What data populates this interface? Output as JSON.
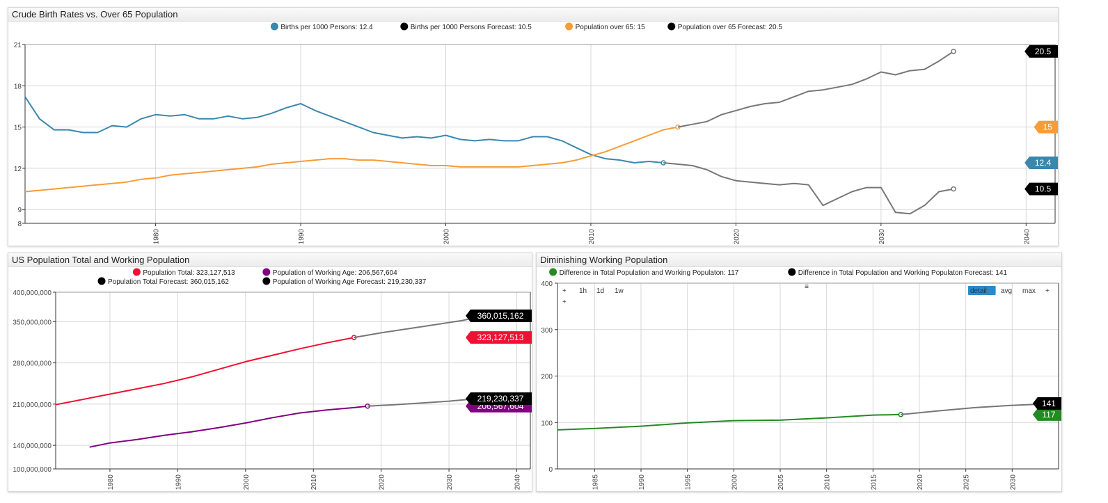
{
  "widgets": [
    {
      "title": "Crude Birth Rates vs. Over 65 Population"
    },
    {
      "title": "US Population Total and Working Population"
    },
    {
      "title": "Diminishing Working Population"
    }
  ],
  "controls": {
    "periods": [
      "+",
      "1h",
      "1d",
      "1w",
      "+"
    ],
    "menu": "≡",
    "modes": [
      "detail",
      "avg",
      "max",
      "+"
    ],
    "active_mode": "detail"
  },
  "chart_data": [
    {
      "type": "line",
      "title": "Crude Birth Rates vs. Over 65 Population",
      "xlim": [
        1971,
        2042
      ],
      "ylim": [
        8,
        21
      ],
      "x_ticks": [
        1980,
        1990,
        2000,
        2010,
        2020,
        2030,
        2040
      ],
      "y_ticks": [
        8,
        9,
        12,
        15,
        18,
        21
      ],
      "series": [
        {
          "name": "Births per 1000 Persons",
          "legend": "Births per 1000 Persons: 12.4",
          "color": "#3a87ad",
          "badge": "12.4",
          "x": [
            1971,
            1972,
            1973,
            1974,
            1975,
            1976,
            1977,
            1978,
            1979,
            1980,
            1981,
            1982,
            1983,
            1984,
            1985,
            1986,
            1987,
            1988,
            1989,
            1990,
            1991,
            1992,
            1993,
            1994,
            1995,
            1996,
            1997,
            1998,
            1999,
            2000,
            2001,
            2002,
            2003,
            2004,
            2005,
            2006,
            2007,
            2008,
            2009,
            2010,
            2011,
            2012,
            2013,
            2014,
            2015
          ],
          "y": [
            17.2,
            15.6,
            14.8,
            14.8,
            14.6,
            14.6,
            15.1,
            15.0,
            15.6,
            15.9,
            15.8,
            15.9,
            15.6,
            15.6,
            15.8,
            15.6,
            15.7,
            16.0,
            16.4,
            16.7,
            16.2,
            15.8,
            15.4,
            15.0,
            14.6,
            14.4,
            14.2,
            14.3,
            14.2,
            14.4,
            14.1,
            14.0,
            14.1,
            14.0,
            14.0,
            14.3,
            14.3,
            14.0,
            13.5,
            13.0,
            12.7,
            12.6,
            12.4,
            12.5,
            12.4
          ]
        },
        {
          "name": "Births per 1000 Persons Forecast",
          "legend": "Births per 1000 Persons Forecast: 10.5",
          "color": "#777777",
          "legend_color": "#000000",
          "badge": "10.5",
          "x": [
            2015,
            2016,
            2017,
            2018,
            2019,
            2020,
            2021,
            2022,
            2023,
            2024,
            2025,
            2026,
            2027,
            2028,
            2029,
            2030,
            2031,
            2032,
            2033,
            2034,
            2035
          ],
          "y": [
            12.4,
            12.3,
            12.2,
            11.9,
            11.4,
            11.1,
            11.0,
            10.9,
            10.8,
            10.9,
            10.8,
            9.3,
            9.8,
            10.3,
            10.6,
            10.6,
            8.8,
            8.7,
            9.3,
            10.3,
            10.5
          ]
        },
        {
          "name": "Population over 65",
          "legend": "Population over 65: 15",
          "color": "#f89c35",
          "badge": "15",
          "x": [
            1971,
            1972,
            1973,
            1974,
            1975,
            1976,
            1977,
            1978,
            1979,
            1980,
            1981,
            1982,
            1983,
            1984,
            1985,
            1986,
            1987,
            1988,
            1989,
            1990,
            1991,
            1992,
            1993,
            1994,
            1995,
            1996,
            1997,
            1998,
            1999,
            2000,
            2001,
            2002,
            2003,
            2004,
            2005,
            2006,
            2007,
            2008,
            2009,
            2010,
            2011,
            2012,
            2013,
            2014,
            2015,
            2016
          ],
          "y": [
            10.3,
            10.4,
            10.5,
            10.6,
            10.7,
            10.8,
            10.9,
            11.0,
            11.2,
            11.3,
            11.5,
            11.6,
            11.7,
            11.8,
            11.9,
            12.0,
            12.1,
            12.3,
            12.4,
            12.5,
            12.6,
            12.7,
            12.7,
            12.6,
            12.6,
            12.5,
            12.4,
            12.3,
            12.2,
            12.2,
            12.1,
            12.1,
            12.1,
            12.1,
            12.1,
            12.2,
            12.3,
            12.4,
            12.6,
            12.9,
            13.2,
            13.6,
            14.0,
            14.4,
            14.8,
            15.0
          ]
        },
        {
          "name": "Population over 65 Forecast",
          "legend": "Population over 65 Forecast: 20.5",
          "color": "#777777",
          "legend_color": "#000000",
          "badge": "20.5",
          "x": [
            2016,
            2017,
            2018,
            2019,
            2020,
            2021,
            2022,
            2023,
            2024,
            2025,
            2026,
            2027,
            2028,
            2029,
            2030,
            2031,
            2032,
            2033,
            2034,
            2035
          ],
          "y": [
            15.0,
            15.2,
            15.4,
            15.9,
            16.2,
            16.5,
            16.7,
            16.8,
            17.2,
            17.6,
            17.7,
            17.9,
            18.1,
            18.5,
            19.0,
            18.8,
            19.1,
            19.2,
            19.8,
            20.5
          ]
        }
      ]
    },
    {
      "type": "line",
      "title": "US Population Total and Working Population",
      "xlim": [
        1972,
        2042
      ],
      "ylim": [
        100000000,
        400000000
      ],
      "x_ticks": [
        1980,
        1990,
        2000,
        2010,
        2020,
        2030,
        2040
      ],
      "y_ticks": [
        100000000,
        140000000,
        210000000,
        280000000,
        350000000,
        400000000
      ],
      "y_tick_labels": [
        "100,000,000",
        "140,000,000",
        "210,000,000",
        "280,000,000",
        "350,000,000",
        "400,000,000"
      ],
      "series": [
        {
          "name": "Population Total",
          "legend": "Population Total: 323,127,513",
          "color": "#ee1133",
          "badge": "323,127,513",
          "x": [
            1972,
            1976,
            1980,
            1984,
            1988,
            1992,
            1996,
            2000,
            2004,
            2008,
            2012,
            2016
          ],
          "y": [
            209000000,
            218000000,
            227000000,
            236000000,
            245000000,
            256000000,
            269000000,
            282000000,
            293000000,
            304000000,
            314000000,
            323127513
          ]
        },
        {
          "name": "Population Total Forecast",
          "legend": "Population Total Forecast: 360,015,162",
          "color": "#777777",
          "legend_color": "#000000",
          "badge": "360,015,162",
          "x": [
            2016,
            2020,
            2024,
            2028,
            2032,
            2035
          ],
          "y": [
            323127513,
            331000000,
            338000000,
            345000000,
            352000000,
            360015162
          ]
        },
        {
          "name": "Population of Working Age",
          "legend": "Population of Working Age: 206,567,604",
          "color": "#800080",
          "badge": "206,567,604",
          "x": [
            1977,
            1980,
            1984,
            1988,
            1992,
            1996,
            2000,
            2004,
            2008,
            2012,
            2016,
            2018
          ],
          "y": [
            137000000,
            144000000,
            150000000,
            157000000,
            163000000,
            170000000,
            178000000,
            187000000,
            195000000,
            200000000,
            204000000,
            206567604
          ]
        },
        {
          "name": "Population of Working Age Forecast",
          "legend": "Population of Working Age Forecast: 219,230,337",
          "color": "#777777",
          "legend_color": "#000000",
          "badge": "219,230,337",
          "x": [
            2018,
            2022,
            2026,
            2030,
            2034
          ],
          "y": [
            206567604,
            209000000,
            212000000,
            215000000,
            219230337
          ]
        }
      ]
    },
    {
      "type": "line",
      "title": "Diminishing Working Population",
      "xlim": [
        1981,
        2035
      ],
      "ylim": [
        0,
        400
      ],
      "x_ticks": [
        1985,
        1990,
        1995,
        2000,
        2005,
        2010,
        2015,
        2020,
        2025,
        2030
      ],
      "y_ticks": [
        0,
        100,
        200,
        300,
        400
      ],
      "series": [
        {
          "name": "Difference in Total Population and Working Populaton",
          "legend": "Difference in Total Population and Working Populaton: 117",
          "color": "#228b22",
          "badge": "117",
          "x": [
            1981,
            1985,
            1990,
            1995,
            2000,
            2005,
            2010,
            2015,
            2018
          ],
          "y": [
            84,
            87,
            92,
            99,
            104,
            105,
            110,
            116,
            117
          ]
        },
        {
          "name": "Difference in Total Population and Working Populaton Forecast",
          "legend": "Difference in Total Population and Working Populaton Forecast: 141",
          "color": "#777777",
          "legend_color": "#000000",
          "badge": "141",
          "x": [
            2018,
            2022,
            2026,
            2030,
            2035
          ],
          "y": [
            117,
            125,
            132,
            137,
            141
          ]
        }
      ]
    }
  ]
}
